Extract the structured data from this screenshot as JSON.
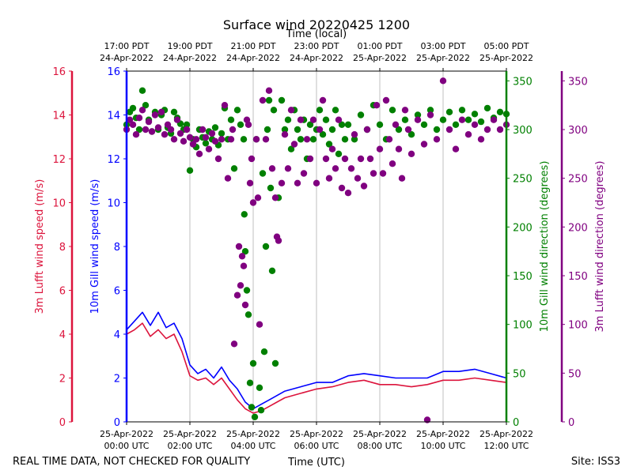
{
  "chart_data": {
    "type": "scatter",
    "title": "Surface wind 20220425 1200",
    "top_axis": {
      "label": "Time (local)",
      "ticks": [
        {
          "line1": "17:00 PDT",
          "line2": "24-Apr-2022"
        },
        {
          "line1": "19:00 PDT",
          "line2": "24-Apr-2022"
        },
        {
          "line1": "21:00 PDT",
          "line2": "24-Apr-2022"
        },
        {
          "line1": "23:00 PDT",
          "line2": "24-Apr-2022"
        },
        {
          "line1": "01:00 PDT",
          "line2": "25-Apr-2022"
        },
        {
          "line1": "03:00 PDT",
          "line2": "25-Apr-2022"
        },
        {
          "line1": "05:00 PDT",
          "line2": "25-Apr-2022"
        }
      ]
    },
    "bottom_axis": {
      "label": "Time (UTC)",
      "xlim": [
        0,
        12
      ],
      "tick_values": [
        0,
        2,
        4,
        6,
        8,
        10,
        12
      ],
      "ticks": [
        {
          "line1": "25-Apr-2022",
          "line2": "00:00 UTC"
        },
        {
          "line1": "25-Apr-2022",
          "line2": "02:00 UTC"
        },
        {
          "line1": "25-Apr-2022",
          "line2": "04:00 UTC"
        },
        {
          "line1": "25-Apr-2022",
          "line2": "06:00 UTC"
        },
        {
          "line1": "25-Apr-2022",
          "line2": "08:00 UTC"
        },
        {
          "line1": "25-Apr-2022",
          "line2": "10:00 UTC"
        },
        {
          "line1": "25-Apr-2022",
          "line2": "12:00 UTC"
        }
      ]
    },
    "axes": {
      "lufft_speed": {
        "label": "3m Lufft wind speed (m/s)",
        "ylim": [
          0,
          16
        ],
        "ticks": [
          "0",
          "2",
          "4",
          "6",
          "8",
          "10",
          "12",
          "14",
          "16"
        ],
        "color": "#dc143c"
      },
      "gill_speed": {
        "label": "10m Gill wind speed (m/s)",
        "ylim": [
          0,
          16
        ],
        "ticks": [
          "0",
          "2",
          "4",
          "6",
          "8",
          "10",
          "12",
          "14",
          "16"
        ],
        "color": "#0000ff"
      },
      "gill_dir": {
        "label": "10m Gill wind direction (degrees)",
        "ylim": [
          0,
          360
        ],
        "ticks": [
          "0",
          "50",
          "100",
          "150",
          "200",
          "250",
          "300",
          "350"
        ],
        "color": "#008000"
      },
      "lufft_dir": {
        "label": "3m Lufft wind direction (degrees)",
        "ylim": [
          0,
          360
        ],
        "ticks": [
          "0",
          "50",
          "100",
          "150",
          "200",
          "250",
          "300",
          "350"
        ],
        "color": "#800080"
      }
    },
    "grid": "vertical",
    "series": [
      {
        "name": "10m Gill wind speed",
        "kind": "line",
        "axis": "gill_speed",
        "color": "#0000ff",
        "x": [
          0.0,
          0.25,
          0.5,
          0.75,
          1.0,
          1.25,
          1.5,
          1.75,
          2.0,
          2.25,
          2.5,
          2.75,
          3.0,
          3.25,
          3.5,
          3.75,
          4.0,
          4.25,
          4.5,
          4.75,
          5.0,
          5.5,
          6.0,
          6.5,
          7.0,
          7.5,
          8.0,
          8.5,
          9.0,
          9.5,
          10.0,
          10.5,
          11.0,
          11.5,
          12.0
        ],
        "y": [
          4.2,
          4.6,
          5.0,
          4.4,
          5.0,
          4.3,
          4.5,
          3.8,
          2.6,
          2.2,
          2.4,
          2.0,
          2.5,
          1.9,
          1.5,
          0.9,
          0.6,
          0.8,
          1.0,
          1.2,
          1.4,
          1.6,
          1.8,
          1.8,
          2.1,
          2.2,
          2.1,
          2.0,
          2.0,
          2.0,
          2.3,
          2.3,
          2.4,
          2.2,
          2.0
        ]
      },
      {
        "name": "3m Lufft wind speed",
        "kind": "line",
        "axis": "lufft_speed",
        "color": "#dc143c",
        "x": [
          0.0,
          0.25,
          0.5,
          0.75,
          1.0,
          1.25,
          1.5,
          1.75,
          2.0,
          2.25,
          2.5,
          2.75,
          3.0,
          3.25,
          3.5,
          3.75,
          4.0,
          4.25,
          4.5,
          4.75,
          5.0,
          5.5,
          6.0,
          6.5,
          7.0,
          7.5,
          8.0,
          8.5,
          9.0,
          9.5,
          10.0,
          10.5,
          11.0,
          11.5,
          12.0
        ],
        "y": [
          4.0,
          4.2,
          4.5,
          3.9,
          4.2,
          3.8,
          4.0,
          3.2,
          2.1,
          1.9,
          2.0,
          1.7,
          2.0,
          1.5,
          1.0,
          0.6,
          0.4,
          0.5,
          0.7,
          0.9,
          1.1,
          1.3,
          1.5,
          1.6,
          1.8,
          1.9,
          1.7,
          1.7,
          1.6,
          1.7,
          1.9,
          1.9,
          2.0,
          1.9,
          1.8
        ]
      },
      {
        "name": "10m Gill wind direction",
        "kind": "points",
        "axis": "gill_dir",
        "color": "#008000",
        "points": [
          [
            0.0,
            305
          ],
          [
            0.1,
            318
          ],
          [
            0.2,
            322
          ],
          [
            0.3,
            312
          ],
          [
            0.4,
            300
          ],
          [
            0.5,
            340
          ],
          [
            0.6,
            325
          ],
          [
            0.7,
            310
          ],
          [
            0.8,
            298
          ],
          [
            0.9,
            318
          ],
          [
            1.0,
            300
          ],
          [
            1.1,
            315
          ],
          [
            1.2,
            320
          ],
          [
            1.3,
            302
          ],
          [
            1.4,
            296
          ],
          [
            1.5,
            318
          ],
          [
            1.6,
            312
          ],
          [
            1.7,
            306
          ],
          [
            1.8,
            300
          ],
          [
            1.9,
            305
          ],
          [
            2.0,
            258
          ],
          [
            2.1,
            290
          ],
          [
            2.2,
            282
          ],
          [
            2.3,
            300
          ],
          [
            2.4,
            292
          ],
          [
            2.5,
            286
          ],
          [
            2.6,
            298
          ],
          [
            2.7,
            290
          ],
          [
            2.8,
            302
          ],
          [
            2.9,
            284
          ],
          [
            3.0,
            296
          ],
          [
            3.1,
            322
          ],
          [
            3.2,
            290
          ],
          [
            3.3,
            310
          ],
          [
            3.4,
            260
          ],
          [
            3.5,
            320
          ],
          [
            3.6,
            305
          ],
          [
            3.7,
            290
          ],
          [
            3.72,
            213
          ],
          [
            3.75,
            175
          ],
          [
            3.8,
            135
          ],
          [
            3.85,
            110
          ],
          [
            3.9,
            40
          ],
          [
            3.95,
            15
          ],
          [
            4.0,
            60
          ],
          [
            4.05,
            5
          ],
          [
            4.1,
            290
          ],
          [
            4.2,
            35
          ],
          [
            4.25,
            12
          ],
          [
            4.3,
            255
          ],
          [
            4.35,
            72
          ],
          [
            4.4,
            180
          ],
          [
            4.45,
            300
          ],
          [
            4.5,
            330
          ],
          [
            4.55,
            240
          ],
          [
            4.6,
            155
          ],
          [
            4.65,
            320
          ],
          [
            4.7,
            60
          ],
          [
            4.8,
            230
          ],
          [
            4.9,
            330
          ],
          [
            5.0,
            300
          ],
          [
            5.1,
            310
          ],
          [
            5.2,
            280
          ],
          [
            5.3,
            320
          ],
          [
            5.4,
            300
          ],
          [
            5.5,
            290
          ],
          [
            5.6,
            310
          ],
          [
            5.7,
            270
          ],
          [
            5.8,
            305
          ],
          [
            5.9,
            290
          ],
          [
            6.0,
            300
          ],
          [
            6.1,
            320
          ],
          [
            6.2,
            295
          ],
          [
            6.3,
            310
          ],
          [
            6.4,
            285
          ],
          [
            6.5,
            300
          ],
          [
            6.6,
            320
          ],
          [
            6.7,
            275
          ],
          [
            6.8,
            305
          ],
          [
            6.9,
            290
          ],
          [
            7.0,
            305
          ],
          [
            7.2,
            290
          ],
          [
            7.4,
            315
          ],
          [
            7.6,
            300
          ],
          [
            7.8,
            325
          ],
          [
            8.0,
            305
          ],
          [
            8.2,
            290
          ],
          [
            8.4,
            320
          ],
          [
            8.6,
            300
          ],
          [
            8.8,
            310
          ],
          [
            9.0,
            295
          ],
          [
            9.2,
            315
          ],
          [
            9.4,
            305
          ],
          [
            9.6,
            320
          ],
          [
            9.8,
            300
          ],
          [
            10.0,
            310
          ],
          [
            10.2,
            318
          ],
          [
            10.4,
            305
          ],
          [
            10.6,
            320
          ],
          [
            10.8,
            310
          ],
          [
            11.0,
            316
          ],
          [
            11.2,
            308
          ],
          [
            11.4,
            322
          ],
          [
            11.6,
            312
          ],
          [
            11.8,
            318
          ],
          [
            12.0,
            316
          ]
        ]
      },
      {
        "name": "3m Lufft wind direction",
        "kind": "points",
        "axis": "lufft_dir",
        "color": "#800080",
        "points": [
          [
            0.0,
            300
          ],
          [
            0.1,
            310
          ],
          [
            0.2,
            305
          ],
          [
            0.3,
            295
          ],
          [
            0.4,
            312
          ],
          [
            0.5,
            320
          ],
          [
            0.6,
            300
          ],
          [
            0.7,
            308
          ],
          [
            0.8,
            298
          ],
          [
            0.9,
            315
          ],
          [
            1.0,
            302
          ],
          [
            1.1,
            318
          ],
          [
            1.2,
            295
          ],
          [
            1.3,
            305
          ],
          [
            1.4,
            300
          ],
          [
            1.5,
            290
          ],
          [
            1.6,
            310
          ],
          [
            1.7,
            296
          ],
          [
            1.8,
            288
          ],
          [
            1.9,
            300
          ],
          [
            2.0,
            292
          ],
          [
            2.1,
            285
          ],
          [
            2.2,
            290
          ],
          [
            2.3,
            275
          ],
          [
            2.4,
            300
          ],
          [
            2.5,
            292
          ],
          [
            2.6,
            280
          ],
          [
            2.7,
            296
          ],
          [
            2.8,
            288
          ],
          [
            2.9,
            270
          ],
          [
            3.0,
            290
          ],
          [
            3.1,
            325
          ],
          [
            3.2,
            250
          ],
          [
            3.3,
            290
          ],
          [
            3.35,
            300
          ],
          [
            3.4,
            80
          ],
          [
            3.5,
            130
          ],
          [
            3.55,
            180
          ],
          [
            3.6,
            140
          ],
          [
            3.65,
            170
          ],
          [
            3.7,
            160
          ],
          [
            3.75,
            120
          ],
          [
            3.8,
            310
          ],
          [
            3.85,
            305
          ],
          [
            3.9,
            245
          ],
          [
            3.95,
            270
          ],
          [
            4.0,
            225
          ],
          [
            4.1,
            290
          ],
          [
            4.15,
            230
          ],
          [
            4.2,
            100
          ],
          [
            4.3,
            330
          ],
          [
            4.4,
            290
          ],
          [
            4.5,
            340
          ],
          [
            4.6,
            260
          ],
          [
            4.7,
            230
          ],
          [
            4.75,
            190
          ],
          [
            4.8,
            186
          ],
          [
            4.9,
            245
          ],
          [
            5.0,
            295
          ],
          [
            5.1,
            260
          ],
          [
            5.2,
            320
          ],
          [
            5.3,
            285
          ],
          [
            5.4,
            245
          ],
          [
            5.5,
            310
          ],
          [
            5.6,
            255
          ],
          [
            5.7,
            290
          ],
          [
            5.8,
            270
          ],
          [
            5.9,
            310
          ],
          [
            6.0,
            245
          ],
          [
            6.1,
            300
          ],
          [
            6.2,
            330
          ],
          [
            6.3,
            270
          ],
          [
            6.4,
            250
          ],
          [
            6.5,
            280
          ],
          [
            6.6,
            260
          ],
          [
            6.7,
            310
          ],
          [
            6.8,
            240
          ],
          [
            6.9,
            270
          ],
          [
            7.0,
            235
          ],
          [
            7.1,
            260
          ],
          [
            7.2,
            295
          ],
          [
            7.3,
            250
          ],
          [
            7.4,
            270
          ],
          [
            7.5,
            242
          ],
          [
            7.6,
            300
          ],
          [
            7.7,
            270
          ],
          [
            7.8,
            255
          ],
          [
            7.9,
            325
          ],
          [
            8.0,
            280
          ],
          [
            8.1,
            255
          ],
          [
            8.2,
            330
          ],
          [
            8.3,
            290
          ],
          [
            8.4,
            265
          ],
          [
            8.5,
            305
          ],
          [
            8.6,
            280
          ],
          [
            8.7,
            250
          ],
          [
            8.8,
            320
          ],
          [
            8.9,
            300
          ],
          [
            9.0,
            275
          ],
          [
            9.2,
            310
          ],
          [
            9.4,
            285
          ],
          [
            9.5,
            2
          ],
          [
            9.6,
            315
          ],
          [
            9.8,
            290
          ],
          [
            10.0,
            350
          ],
          [
            10.2,
            300
          ],
          [
            10.4,
            280
          ],
          [
            10.6,
            310
          ],
          [
            10.8,
            295
          ],
          [
            11.0,
            305
          ],
          [
            11.2,
            290
          ],
          [
            11.4,
            300
          ],
          [
            11.6,
            310
          ],
          [
            11.8,
            300
          ],
          [
            12.0,
            305
          ]
        ]
      }
    ]
  },
  "footer": {
    "disclaimer": "REAL TIME DATA, NOT CHECKED FOR QUALITY",
    "site": "Site: ISS3"
  }
}
